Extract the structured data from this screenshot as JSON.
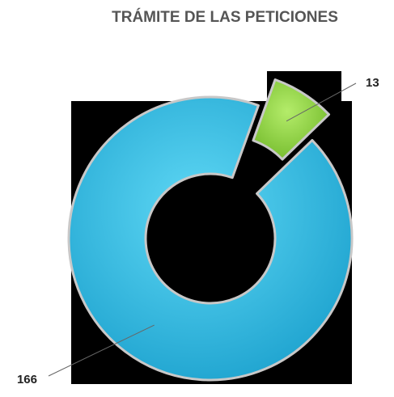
{
  "chart_data": {
    "type": "donut",
    "title": "TRÁMITE DE LAS PETICIONES",
    "series": [
      {
        "values": [
          166,
          13
        ],
        "colors": [
          "#33bfe6",
          "#8fd63f"
        ]
      }
    ]
  }
}
